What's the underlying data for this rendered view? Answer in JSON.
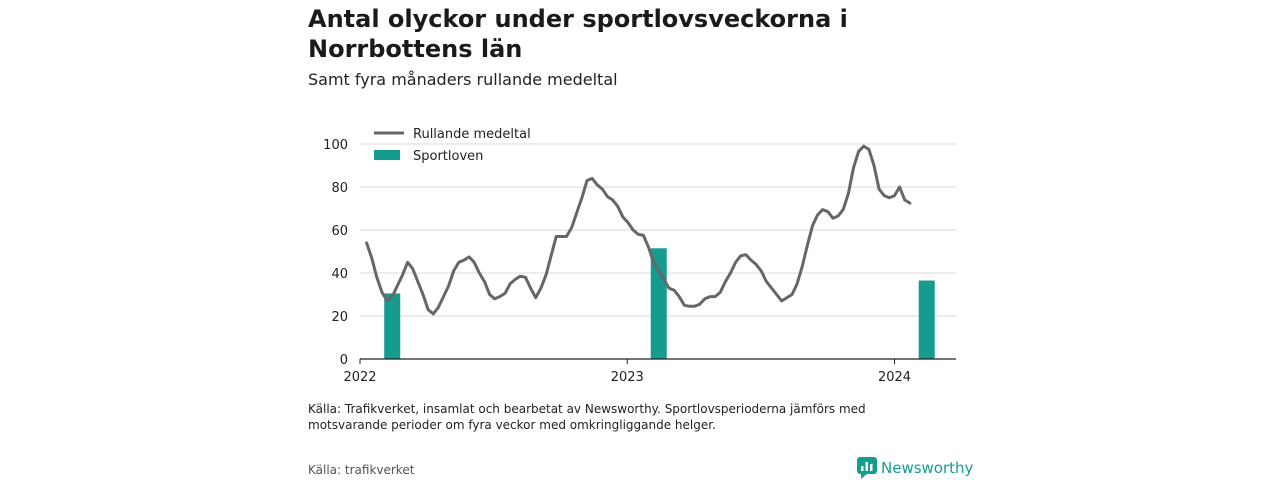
{
  "header": {
    "title": "Antal olyckor under sportlovsveckorna i Norrbottens län",
    "subtitle": "Samt fyra månaders rullande medeltal"
  },
  "footer": {
    "note": "Källa: Trafikverket, insamlat och bearbetat av Newsworthy. Sportlovsperioderna jämförs med motsvarande perioder om fyra veckor med omkringliggande helger.",
    "source": "Källa: trafikverket",
    "brand": "Newsworthy"
  },
  "colors": {
    "line": "#666666",
    "bars": "#169b8f",
    "brand": "#149e8f"
  },
  "chart_data": {
    "type": "bar+line",
    "x_type": "date",
    "xlim": [
      "2022-01-01",
      "2024-03-25"
    ],
    "ylim": [
      0,
      100
    ],
    "yticks": [
      0,
      20,
      40,
      60,
      80,
      100
    ],
    "xticks": [
      {
        "date": "2022-01-01",
        "label": "2022"
      },
      {
        "date": "2023-01-01",
        "label": "2023"
      },
      {
        "date": "2024-01-01",
        "label": "2024"
      }
    ],
    "grid": true,
    "legend_position": "top-left",
    "series": [
      {
        "name": "Rullande medeltal",
        "type": "line",
        "points": [
          {
            "x": "2022-01-10",
            "y": 54
          },
          {
            "x": "2022-01-17",
            "y": 47
          },
          {
            "x": "2022-01-24",
            "y": 38
          },
          {
            "x": "2022-01-31",
            "y": 31
          },
          {
            "x": "2022-02-07",
            "y": 27
          },
          {
            "x": "2022-02-14",
            "y": 29
          },
          {
            "x": "2022-02-21",
            "y": 34
          },
          {
            "x": "2022-02-28",
            "y": 39
          },
          {
            "x": "2022-03-07",
            "y": 45
          },
          {
            "x": "2022-03-14",
            "y": 42
          },
          {
            "x": "2022-03-21",
            "y": 36
          },
          {
            "x": "2022-03-28",
            "y": 30
          },
          {
            "x": "2022-04-04",
            "y": 23
          },
          {
            "x": "2022-04-11",
            "y": 21
          },
          {
            "x": "2022-04-18",
            "y": 24
          },
          {
            "x": "2022-04-25",
            "y": 29
          },
          {
            "x": "2022-05-02",
            "y": 34
          },
          {
            "x": "2022-05-09",
            "y": 41
          },
          {
            "x": "2022-05-16",
            "y": 45
          },
          {
            "x": "2022-05-23",
            "y": 46
          },
          {
            "x": "2022-05-30",
            "y": 47.5
          },
          {
            "x": "2022-06-06",
            "y": 45
          },
          {
            "x": "2022-06-13",
            "y": 40
          },
          {
            "x": "2022-06-20",
            "y": 36
          },
          {
            "x": "2022-06-27",
            "y": 30
          },
          {
            "x": "2022-07-04",
            "y": 28
          },
          {
            "x": "2022-07-11",
            "y": 29
          },
          {
            "x": "2022-07-18",
            "y": 30.5
          },
          {
            "x": "2022-07-25",
            "y": 35
          },
          {
            "x": "2022-08-01",
            "y": 37
          },
          {
            "x": "2022-08-08",
            "y": 38.5
          },
          {
            "x": "2022-08-15",
            "y": 38
          },
          {
            "x": "2022-08-22",
            "y": 33
          },
          {
            "x": "2022-08-29",
            "y": 28.5
          },
          {
            "x": "2022-09-05",
            "y": 33
          },
          {
            "x": "2022-09-12",
            "y": 39
          },
          {
            "x": "2022-09-19",
            "y": 48
          },
          {
            "x": "2022-09-26",
            "y": 57
          },
          {
            "x": "2022-10-03",
            "y": 57
          },
          {
            "x": "2022-10-10",
            "y": 57
          },
          {
            "x": "2022-10-17",
            "y": 61
          },
          {
            "x": "2022-10-24",
            "y": 68
          },
          {
            "x": "2022-10-31",
            "y": 75
          },
          {
            "x": "2022-11-07",
            "y": 83
          },
          {
            "x": "2022-11-14",
            "y": 84
          },
          {
            "x": "2022-11-21",
            "y": 81
          },
          {
            "x": "2022-11-28",
            "y": 79
          },
          {
            "x": "2022-12-05",
            "y": 75.5
          },
          {
            "x": "2022-12-12",
            "y": 74
          },
          {
            "x": "2022-12-19",
            "y": 71
          },
          {
            "x": "2022-12-26",
            "y": 66
          },
          {
            "x": "2023-01-02",
            "y": 63.5
          },
          {
            "x": "2023-01-09",
            "y": 60
          },
          {
            "x": "2023-01-16",
            "y": 58
          },
          {
            "x": "2023-01-23",
            "y": 57.5
          },
          {
            "x": "2023-01-30",
            "y": 52
          },
          {
            "x": "2023-02-06",
            "y": 45
          },
          {
            "x": "2023-02-13",
            "y": 41
          },
          {
            "x": "2023-02-20",
            "y": 37
          },
          {
            "x": "2023-02-27",
            "y": 33
          },
          {
            "x": "2023-03-06",
            "y": 32
          },
          {
            "x": "2023-03-13",
            "y": 29
          },
          {
            "x": "2023-03-20",
            "y": 25
          },
          {
            "x": "2023-03-27",
            "y": 24.5
          },
          {
            "x": "2023-04-03",
            "y": 24.5
          },
          {
            "x": "2023-04-10",
            "y": 25.5
          },
          {
            "x": "2023-04-17",
            "y": 28
          },
          {
            "x": "2023-04-24",
            "y": 29
          },
          {
            "x": "2023-05-01",
            "y": 29
          },
          {
            "x": "2023-05-08",
            "y": 31
          },
          {
            "x": "2023-05-15",
            "y": 36
          },
          {
            "x": "2023-05-22",
            "y": 40
          },
          {
            "x": "2023-05-29",
            "y": 45
          },
          {
            "x": "2023-06-05",
            "y": 48
          },
          {
            "x": "2023-06-12",
            "y": 48.5
          },
          {
            "x": "2023-06-19",
            "y": 46
          },
          {
            "x": "2023-06-26",
            "y": 44
          },
          {
            "x": "2023-07-03",
            "y": 41
          },
          {
            "x": "2023-07-10",
            "y": 36
          },
          {
            "x": "2023-07-17",
            "y": 33
          },
          {
            "x": "2023-07-24",
            "y": 30
          },
          {
            "x": "2023-07-31",
            "y": 27
          },
          {
            "x": "2023-08-07",
            "y": 28.5
          },
          {
            "x": "2023-08-14",
            "y": 30
          },
          {
            "x": "2023-08-21",
            "y": 35
          },
          {
            "x": "2023-08-28",
            "y": 43
          },
          {
            "x": "2023-09-04",
            "y": 53
          },
          {
            "x": "2023-09-11",
            "y": 62
          },
          {
            "x": "2023-09-18",
            "y": 67
          },
          {
            "x": "2023-09-25",
            "y": 69.5
          },
          {
            "x": "2023-10-02",
            "y": 68.5
          },
          {
            "x": "2023-10-09",
            "y": 65.5
          },
          {
            "x": "2023-10-16",
            "y": 66.5
          },
          {
            "x": "2023-10-23",
            "y": 69.5
          },
          {
            "x": "2023-10-30",
            "y": 77
          },
          {
            "x": "2023-11-06",
            "y": 89
          },
          {
            "x": "2023-11-13",
            "y": 96.5
          },
          {
            "x": "2023-11-20",
            "y": 99
          },
          {
            "x": "2023-11-27",
            "y": 97.5
          },
          {
            "x": "2023-12-04",
            "y": 90
          },
          {
            "x": "2023-12-11",
            "y": 79
          },
          {
            "x": "2023-12-18",
            "y": 76
          },
          {
            "x": "2023-12-25",
            "y": 75
          },
          {
            "x": "2024-01-01",
            "y": 76
          },
          {
            "x": "2024-01-08",
            "y": 80
          },
          {
            "x": "2024-01-15",
            "y": 74
          },
          {
            "x": "2024-01-22",
            "y": 72.5
          }
        ]
      },
      {
        "name": "Sportloven",
        "type": "bar",
        "points": [
          {
            "x": "2022-02-14",
            "y": 30.5
          },
          {
            "x": "2023-02-13",
            "y": 51.5
          },
          {
            "x": "2024-02-14",
            "y": 36.5
          }
        ]
      }
    ]
  }
}
